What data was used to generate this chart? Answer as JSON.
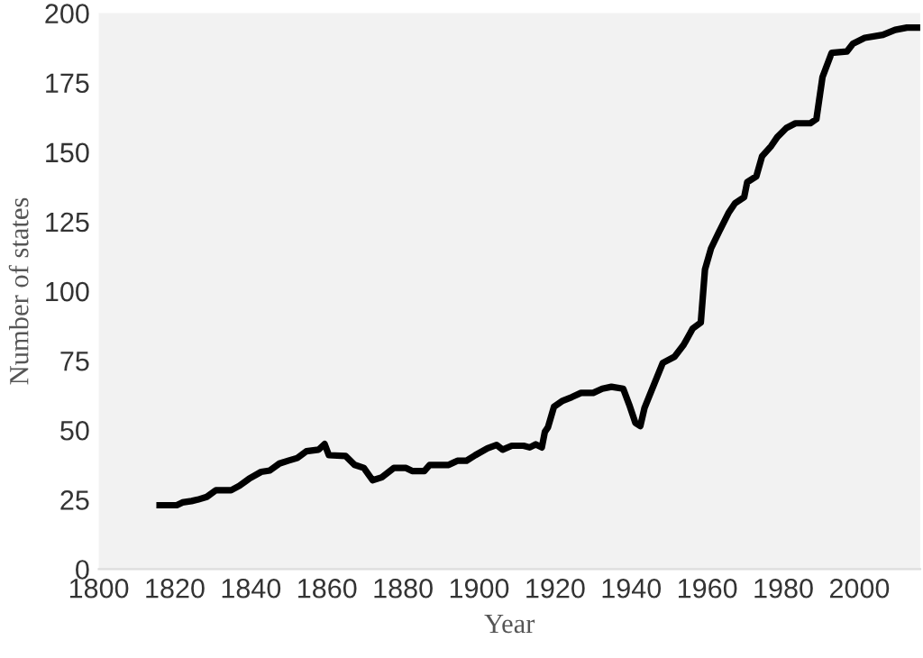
{
  "chart_data": {
    "type": "line",
    "xlabel": "Year",
    "ylabel": "Number of states",
    "xlim": [
      1800,
      2016
    ],
    "ylim": [
      0,
      200
    ],
    "xticks": [
      1800,
      1820,
      1840,
      1860,
      1880,
      1900,
      1920,
      1940,
      1960,
      1980,
      2000
    ],
    "yticks": [
      0,
      25,
      50,
      75,
      100,
      125,
      150,
      175,
      200
    ],
    "grid": false,
    "legend": false,
    "marker": "none",
    "line_style": "solid",
    "series": [
      {
        "color": "#000000",
        "x": [
          1816,
          1820.5,
          1822,
          1824.4,
          1826,
          1828.4,
          1830.8,
          1834.8,
          1837,
          1839.5,
          1842.7,
          1845,
          1847.5,
          1849.8,
          1852.2,
          1854.6,
          1857.8,
          1859.4,
          1860.5,
          1864.9,
          1867.3,
          1869.7,
          1872,
          1874.4,
          1877.6,
          1880.8,
          1882.4,
          1885.6,
          1887,
          1892,
          1894.3,
          1896.7,
          1899,
          1902.2,
          1904.6,
          1906.2,
          1908.6,
          1911.7,
          1913.3,
          1914.9,
          1916.5,
          1917.3,
          1918.1,
          1919.7,
          1922,
          1924.4,
          1926.8,
          1930,
          1932.4,
          1934.8,
          1937.9,
          1939.5,
          1941.1,
          1942.4,
          1943.5,
          1945.1,
          1948.3,
          1951.4,
          1953.8,
          1956.2,
          1958.3,
          1959.4,
          1961,
          1963.3,
          1965.7,
          1967.3,
          1969.7,
          1970.5,
          1972.9,
          1974.4,
          1976.8,
          1978.4,
          1980.8,
          1983.2,
          1987.1,
          1988.7,
          1990.3,
          1992.7,
          1996.7,
          1998.3,
          2001.4,
          2006.2,
          2009.4,
          2012.5,
          2015.7
        ],
        "values": [
          23,
          23,
          24,
          24.5,
          25,
          26,
          28.4,
          28.4,
          30,
          32.5,
          35,
          35.5,
          38,
          39,
          40,
          42.4,
          43,
          45,
          41,
          40.7,
          37.5,
          36.4,
          32,
          33,
          36.4,
          36.4,
          35.3,
          35.3,
          37.5,
          37.5,
          39,
          39,
          41,
          43.5,
          44.7,
          43,
          44.4,
          44.4,
          43.8,
          44.9,
          43.8,
          49.4,
          51,
          58.4,
          60.6,
          61.9,
          63.4,
          63.4,
          64.9,
          65.6,
          64.9,
          59.1,
          52.6,
          51.5,
          58,
          63.4,
          74.2,
          76.4,
          80.7,
          86.6,
          88.7,
          107.8,
          115.4,
          121.9,
          128.4,
          131.6,
          133.8,
          139.2,
          141.3,
          148.5,
          152.2,
          155.4,
          158.7,
          160.4,
          160.4,
          161.9,
          177,
          185.7,
          186.2,
          189,
          191.1,
          192.2,
          194,
          194.8,
          194.8
        ]
      }
    ]
  }
}
